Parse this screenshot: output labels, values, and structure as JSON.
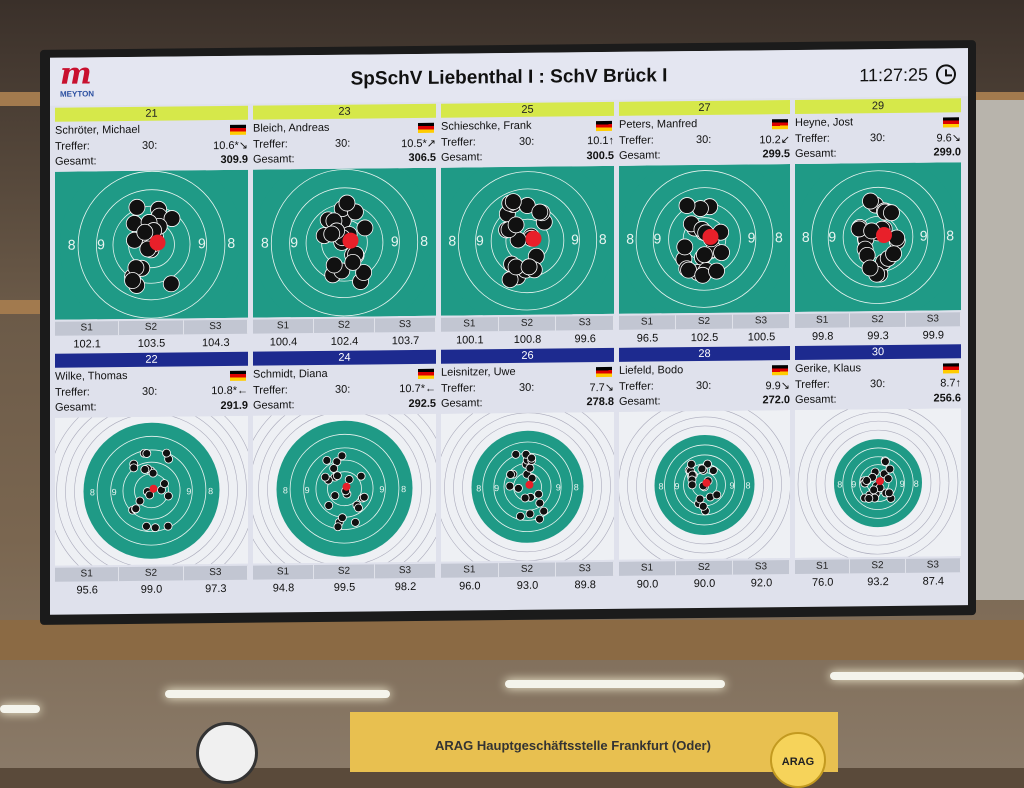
{
  "header": {
    "title": "SpSchV Liebenthal I : SchV Brück I",
    "clock": "11:27:25",
    "logo": "MEYTON"
  },
  "labels": {
    "treffer": "Treffer:",
    "gesamt": "Gesamt:",
    "s1": "S1",
    "s2": "S2",
    "s3": "S3"
  },
  "lanes_top": [
    {
      "lane": "21",
      "name": "Schröter, Michael",
      "shots": "30:",
      "last": "10.6*↘",
      "total": "309.9",
      "s1": "102.1",
      "s2": "103.5",
      "s3": "104.3"
    },
    {
      "lane": "23",
      "name": "Bleich, Andreas",
      "shots": "30:",
      "last": "10.5*↗",
      "total": "306.5",
      "s1": "100.4",
      "s2": "102.4",
      "s3": "103.7"
    },
    {
      "lane": "25",
      "name": "Schieschke, Frank",
      "shots": "30:",
      "last": "10.1↑",
      "total": "300.5",
      "s1": "100.1",
      "s2": "100.8",
      "s3": "99.6"
    },
    {
      "lane": "27",
      "name": "Peters, Manfred",
      "shots": "30:",
      "last": "10.2↙",
      "total": "299.5",
      "s1": "96.5",
      "s2": "102.5",
      "s3": "100.5"
    },
    {
      "lane": "29",
      "name": "Heyne, Jost",
      "shots": "30:",
      "last": "9.6↘",
      "total": "299.0",
      "s1": "99.8",
      "s2": "99.3",
      "s3": "99.9"
    }
  ],
  "lanes_bottom": [
    {
      "lane": "22",
      "name": "Wilke, Thomas",
      "shots": "30:",
      "last": "10.8*←",
      "total": "291.9",
      "s1": "95.6",
      "s2": "99.0",
      "s3": "97.3"
    },
    {
      "lane": "24",
      "name": "Schmidt, Diana",
      "shots": "30:",
      "last": "10.7*←",
      "total": "292.5",
      "s1": "94.8",
      "s2": "99.5",
      "s3": "98.2"
    },
    {
      "lane": "26",
      "name": "Leisnitzer, Uwe",
      "shots": "30:",
      "last": "7.7↘",
      "total": "278.8",
      "s1": "96.0",
      "s2": "93.0",
      "s3": "89.8"
    },
    {
      "lane": "28",
      "name": "Liefeld, Bodo",
      "shots": "30:",
      "last": "9.9↘",
      "total": "272.0",
      "s1": "90.0",
      "s2": "90.0",
      "s3": "92.0"
    },
    {
      "lane": "30",
      "name": "Gerike, Klaus",
      "shots": "30:",
      "last": "8.7↑",
      "total": "256.6",
      "s1": "76.0",
      "s2": "93.2",
      "s3": "87.4"
    }
  ],
  "banner": {
    "text": "ARAG Hauptgeschäftsstelle Frankfurt (Oder)",
    "logo": "ARAG"
  },
  "colors": {
    "target_green": "#1f9a86",
    "top_lane_bar": "#d6e84a",
    "bottom_lane_bar": "#1d2a8f",
    "last_shot": "#e8202a"
  }
}
